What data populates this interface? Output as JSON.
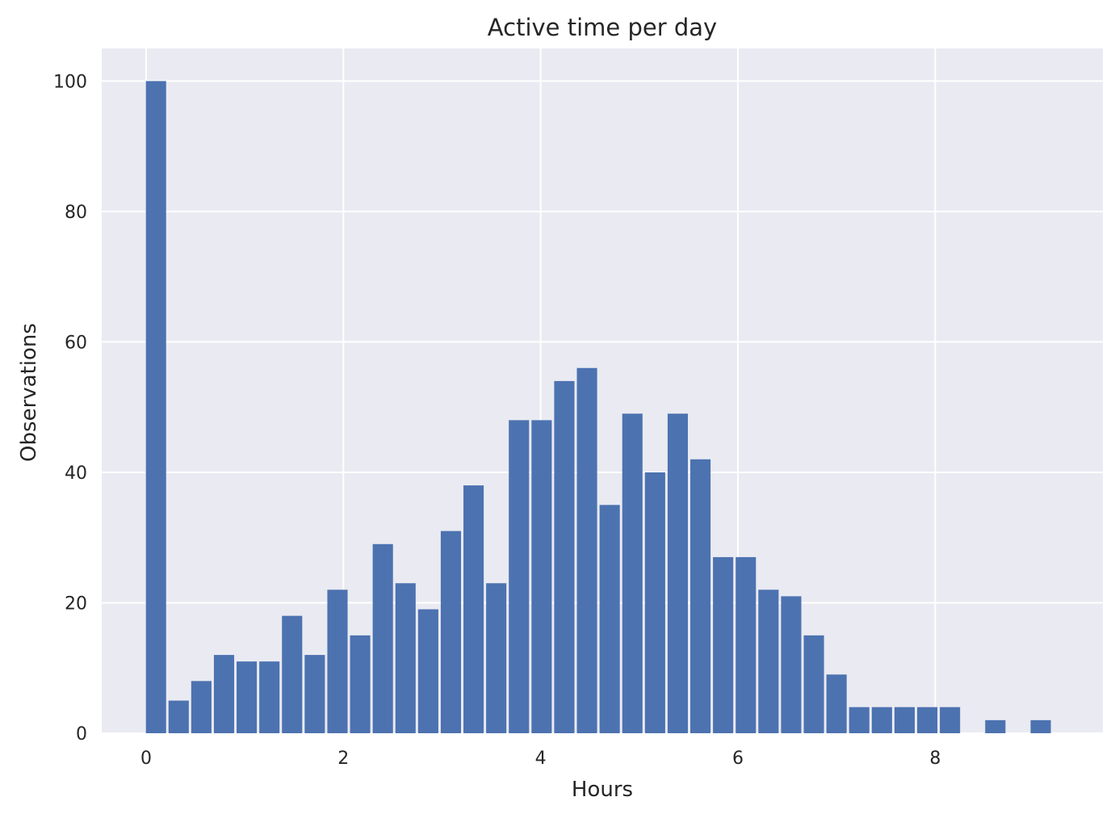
{
  "chart_data": {
    "type": "bar",
    "title": "Active time per day",
    "xlabel": "Hours",
    "ylabel": "Observations",
    "xlim": [
      -0.45,
      9.7
    ],
    "ylim": [
      0,
      105
    ],
    "xticks": [
      0,
      2,
      4,
      6,
      8
    ],
    "yticks": [
      0,
      20,
      40,
      60,
      80,
      100
    ],
    "bin_width": 0.23,
    "grid": true,
    "colors": {
      "bar": "#4c72b0",
      "background": "#eaeaf2",
      "grid": "#ffffff"
    },
    "x": [
      0.1,
      0.33,
      0.56,
      0.79,
      1.02,
      1.25,
      1.48,
      1.71,
      1.94,
      2.17,
      2.4,
      2.63,
      2.86,
      3.09,
      3.32,
      3.55,
      3.78,
      4.01,
      4.24,
      4.47,
      4.7,
      4.93,
      5.16,
      5.39,
      5.62,
      5.85,
      6.08,
      6.31,
      6.54,
      6.77,
      7.0,
      7.23,
      7.46,
      7.69,
      7.92,
      8.15,
      8.38,
      8.61,
      8.84,
      9.07
    ],
    "values": [
      100,
      5,
      8,
      12,
      11,
      11,
      18,
      12,
      22,
      15,
      29,
      23,
      19,
      31,
      38,
      23,
      48,
      48,
      54,
      56,
      35,
      49,
      40,
      49,
      42,
      27,
      27,
      22,
      21,
      15,
      9,
      4,
      4,
      4,
      4,
      4,
      0,
      2,
      0,
      2
    ]
  }
}
